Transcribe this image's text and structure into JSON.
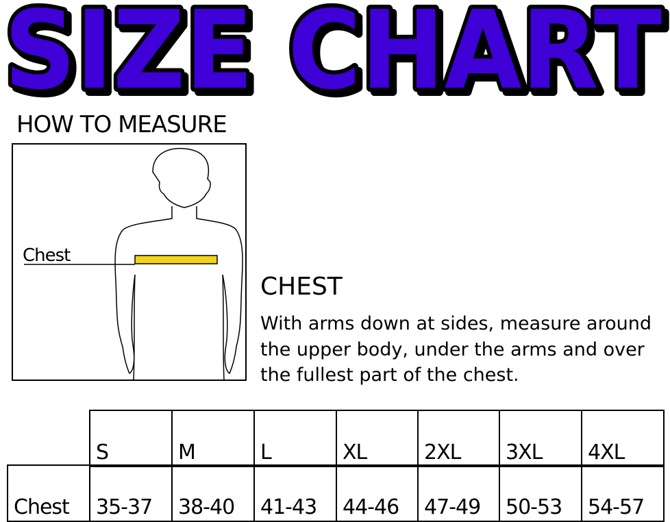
{
  "title": "SIZE CHART",
  "colors": {
    "title_fill": "#3f00d8",
    "title_outline": "#000000",
    "tape": "#f2d21a"
  },
  "how_to_measure": "HOW TO MEASURE",
  "figure_label": "Chest",
  "instruction": {
    "heading": "CHEST",
    "text": "With arms down at sides, measure around the upper body, under the arms and over the fullest part of the chest."
  },
  "table": {
    "sizes": [
      "S",
      "M",
      "L",
      "XL",
      "2XL",
      "3XL",
      "4XL"
    ],
    "row_label": "Chest",
    "values": [
      "35-37",
      "38-40",
      "41-43",
      "44-46",
      "47-49",
      "50-53",
      "54-57"
    ]
  }
}
